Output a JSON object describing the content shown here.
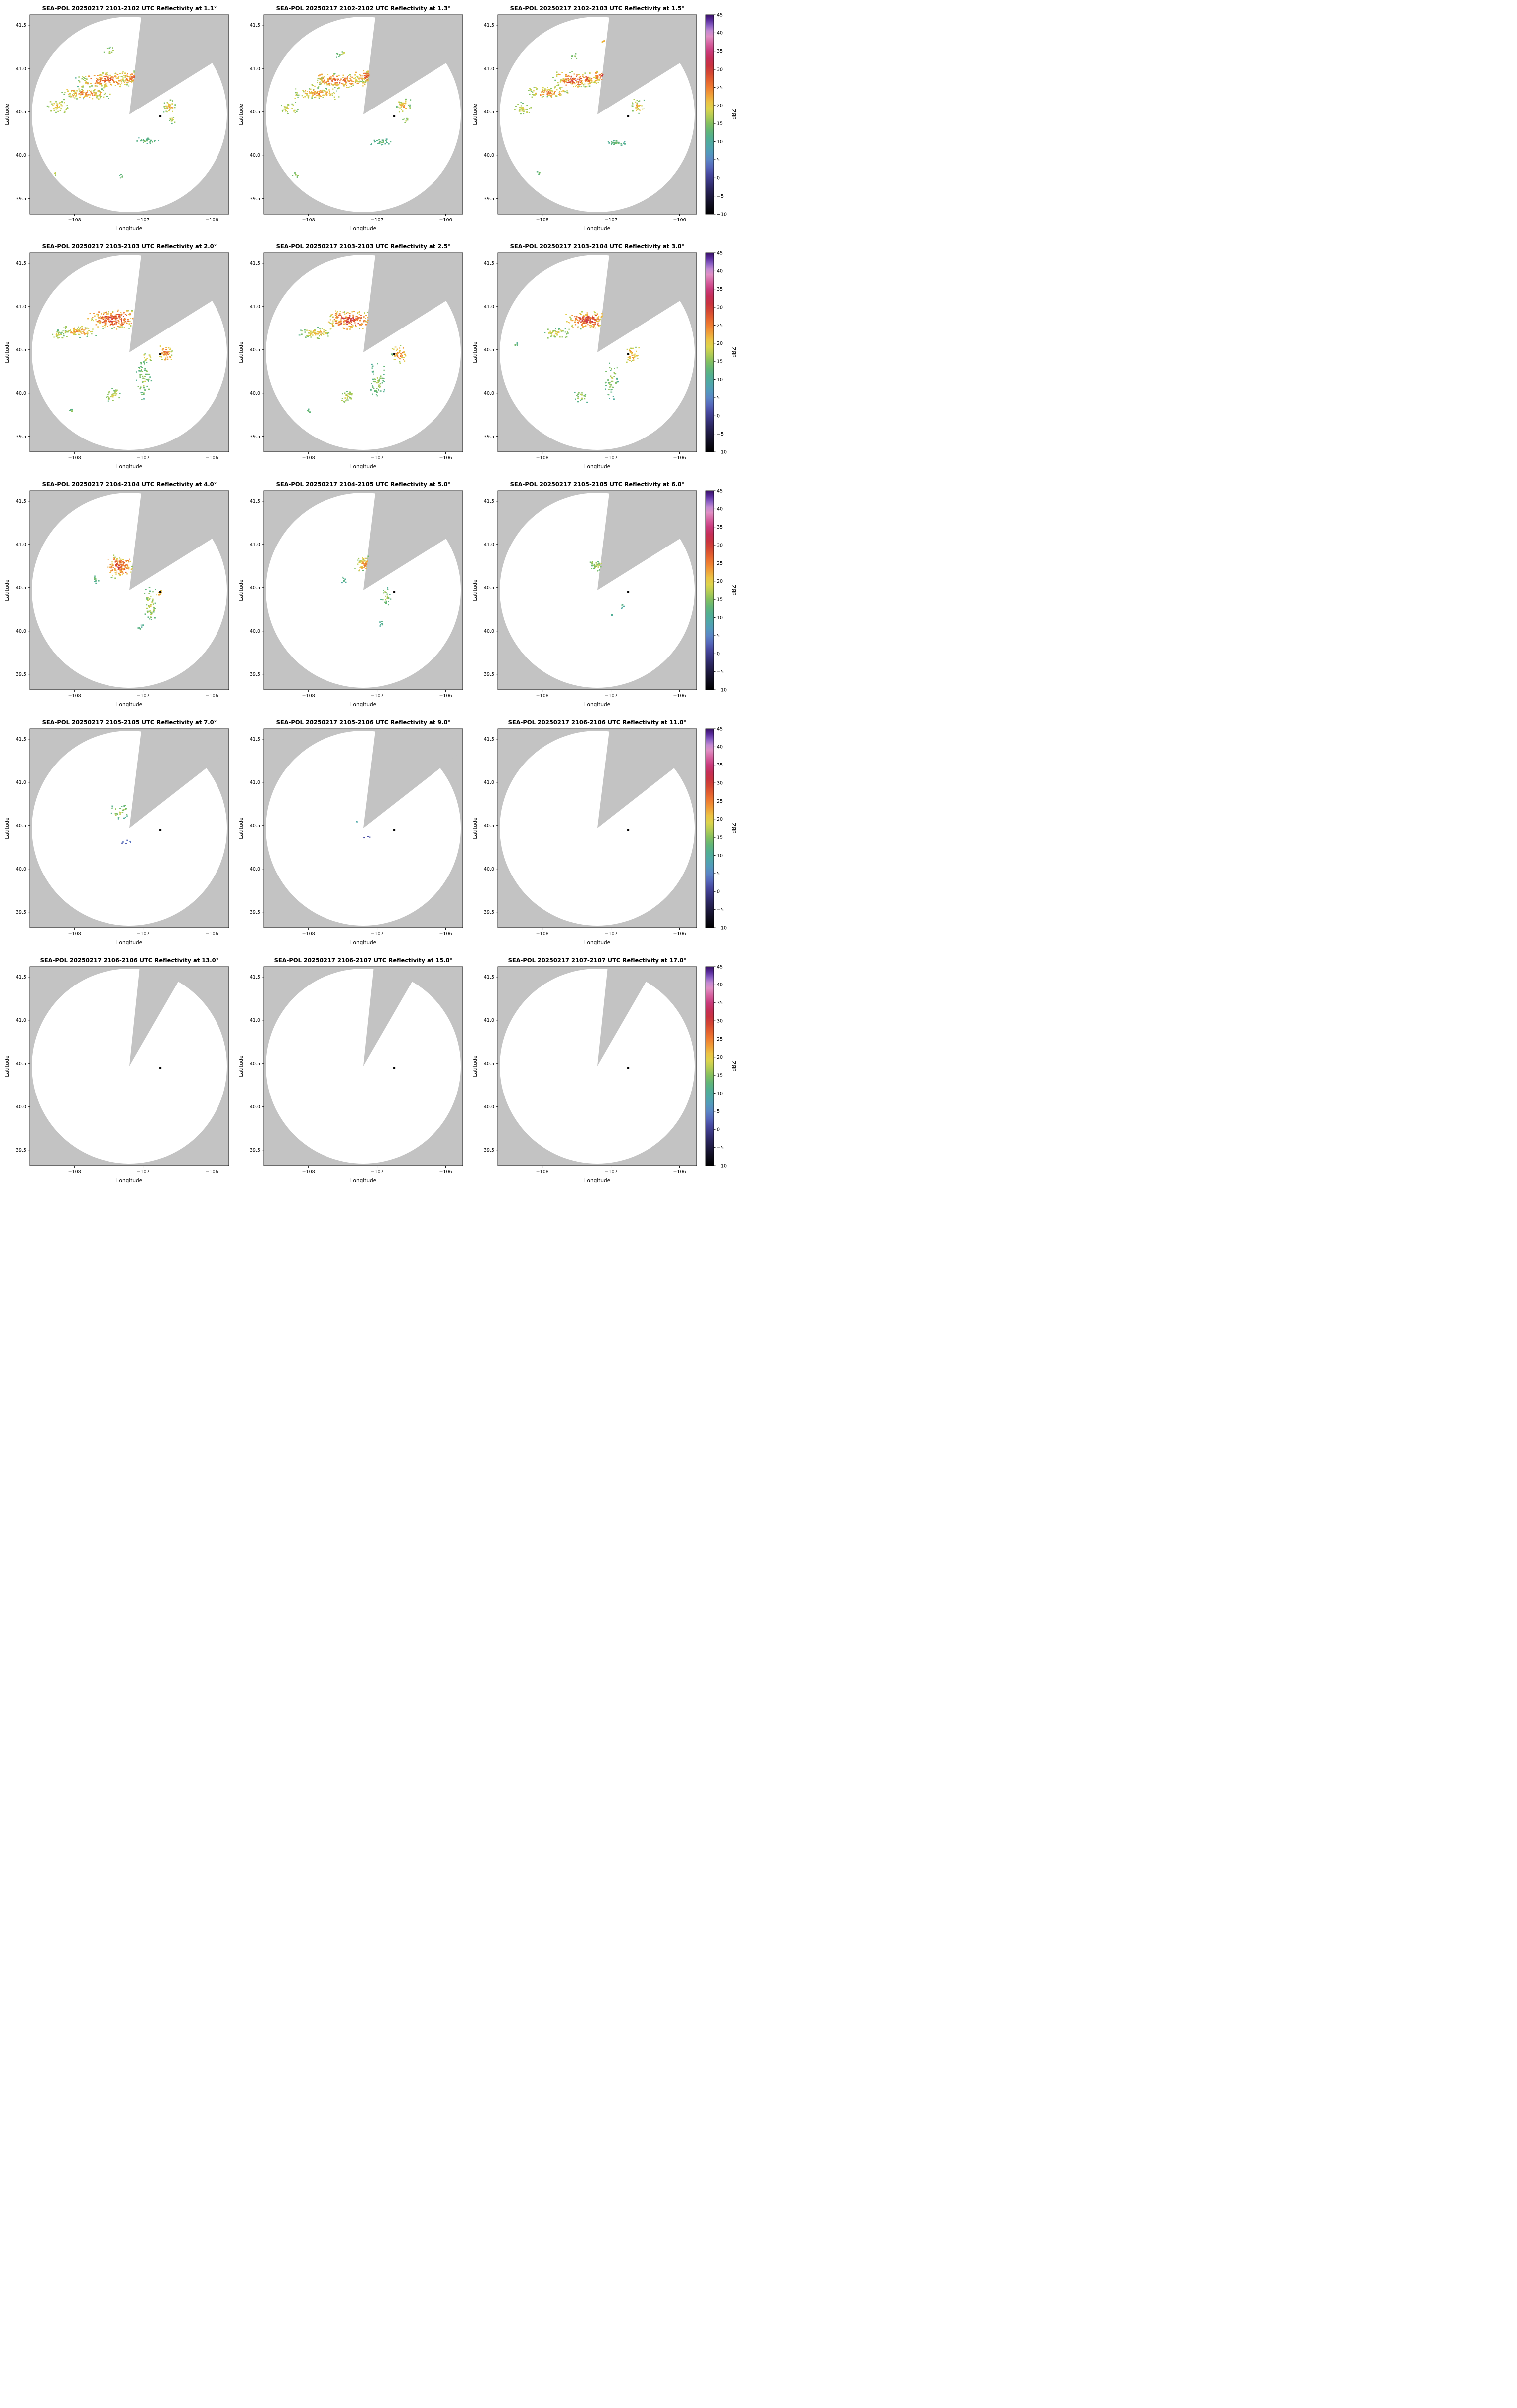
{
  "figure": {
    "rows": 5,
    "cols": 3,
    "axes": {
      "xlabel": "Longitude",
      "ylabel": "Latitude",
      "xlim": [
        -108.65,
        -105.75
      ],
      "ylim": [
        39.32,
        41.62
      ],
      "xticks": [
        -108,
        -107,
        -106
      ],
      "xtick_labels": [
        "−108",
        "−107",
        "−106"
      ],
      "yticks": [
        39.5,
        40.0,
        40.5,
        41.0,
        41.5
      ],
      "ytick_labels": [
        "39.5",
        "40.0",
        "40.5",
        "41.0",
        "41.5"
      ]
    },
    "radar": {
      "center_lon": -107.2,
      "center_lat": 40.47,
      "radius_lat_deg": 1.127,
      "marker_lon": -106.75,
      "marker_lat": 40.45
    },
    "colorbar": {
      "label": "dBZ",
      "min": -10,
      "max": 45,
      "tick_values": [
        45,
        40,
        35,
        30,
        25,
        20,
        15,
        10,
        5,
        0,
        -5,
        -10
      ],
      "tick_labels": [
        "45",
        "40",
        "35",
        "30",
        "25",
        "20",
        "15",
        "10",
        "5",
        "0",
        "−5",
        "−10"
      ],
      "stops": [
        [
          45,
          "#3a1266"
        ],
        [
          43.5,
          "#5b2d9e"
        ],
        [
          42,
          "#8a5fc4"
        ],
        [
          40.5,
          "#c38ad2"
        ],
        [
          39,
          "#e08fc4"
        ],
        [
          37,
          "#d6619f"
        ],
        [
          35,
          "#c93b7c"
        ],
        [
          33,
          "#c52f58"
        ],
        [
          31,
          "#c93340"
        ],
        [
          29,
          "#d44733"
        ],
        [
          27,
          "#e4612f"
        ],
        [
          25,
          "#ef7d31"
        ],
        [
          23,
          "#f09e38"
        ],
        [
          21,
          "#ecc244"
        ],
        [
          19,
          "#dcd44c"
        ],
        [
          17,
          "#b3cc55"
        ],
        [
          15,
          "#84c05f"
        ],
        [
          13,
          "#63b677"
        ],
        [
          11,
          "#52af92"
        ],
        [
          9,
          "#4fa8a8"
        ],
        [
          7,
          "#539bbc"
        ],
        [
          5,
          "#5b86c6"
        ],
        [
          3,
          "#5668bc"
        ],
        [
          1,
          "#48499f"
        ],
        [
          -1,
          "#393680"
        ],
        [
          -3,
          "#2b265e"
        ],
        [
          -5,
          "#1e1a40"
        ],
        [
          -7,
          "#121024"
        ],
        [
          -10,
          "#000000"
        ]
      ]
    },
    "colors": {
      "outside_gray": "#c3c3c3",
      "scan_white": "#ffffff",
      "marker_black": "#000000"
    }
  },
  "chart_data": {
    "type": "heatmap",
    "description": "SEA-POL radar PPI reflectivity sweeps, 5x3 grid of elevation angles, shared dBZ colorbar per row",
    "cluster_fields": [
      "lon",
      "lat",
      "dlon_halfwidth",
      "dlat_halfwidth",
      "n_points",
      "dbz_min",
      "dbz_max",
      "seed"
    ],
    "panels": [
      {
        "title": "SEA-POL 20250217 2101-2102 UTC Reflectivity at 1.1°",
        "elevation": 1.1,
        "wedge": [
          7,
          58
        ],
        "clusters": [
          [
            -107.55,
            40.88,
            0.45,
            0.1,
            170,
            10,
            33,
            11
          ],
          [
            -107.15,
            40.91,
            0.2,
            0.08,
            90,
            12,
            33,
            12
          ],
          [
            -107.85,
            40.72,
            0.38,
            0.07,
            115,
            10,
            30,
            13
          ],
          [
            -108.25,
            40.57,
            0.18,
            0.08,
            40,
            12,
            24,
            14
          ],
          [
            -106.62,
            40.57,
            0.12,
            0.1,
            36,
            10,
            26,
            15
          ],
          [
            -106.95,
            40.17,
            0.18,
            0.04,
            30,
            8,
            16,
            16
          ],
          [
            -108.3,
            39.8,
            0.06,
            0.03,
            6,
            12,
            20,
            17
          ],
          [
            -107.5,
            41.2,
            0.12,
            0.06,
            12,
            10,
            20,
            18
          ],
          [
            -106.58,
            40.42,
            0.06,
            0.05,
            10,
            10,
            22,
            19
          ],
          [
            -107.32,
            39.76,
            0.05,
            0.03,
            5,
            10,
            16,
            20
          ]
        ]
      },
      {
        "title": "SEA-POL 20250217 2102-2102 UTC Reflectivity at 1.3°",
        "elevation": 1.3,
        "wedge": [
          7,
          58
        ],
        "clusters": [
          [
            -107.55,
            40.87,
            0.45,
            0.1,
            165,
            10,
            33,
            111
          ],
          [
            -107.15,
            40.92,
            0.2,
            0.08,
            85,
            12,
            33,
            112
          ],
          [
            -107.9,
            40.72,
            0.35,
            0.07,
            105,
            10,
            30,
            113
          ],
          [
            -108.3,
            40.55,
            0.15,
            0.07,
            32,
            12,
            22,
            114
          ],
          [
            -106.63,
            40.58,
            0.12,
            0.1,
            35,
            10,
            26,
            115
          ],
          [
            -106.95,
            40.16,
            0.17,
            0.04,
            28,
            8,
            16,
            116
          ],
          [
            -108.2,
            39.78,
            0.06,
            0.03,
            6,
            12,
            18,
            117
          ],
          [
            -107.52,
            41.18,
            0.1,
            0.05,
            10,
            10,
            20,
            118
          ],
          [
            -106.6,
            40.4,
            0.05,
            0.05,
            8,
            10,
            20,
            119
          ]
        ]
      },
      {
        "title": "SEA-POL 20250217 2102-2103 UTC Reflectivity at 1.5°",
        "elevation": 1.5,
        "wedge": [
          7,
          58
        ],
        "clusters": [
          [
            -107.5,
            40.88,
            0.42,
            0.1,
            155,
            10,
            34,
            211
          ],
          [
            -107.12,
            40.92,
            0.18,
            0.08,
            80,
            12,
            33,
            212
          ],
          [
            -107.9,
            40.73,
            0.33,
            0.07,
            95,
            10,
            30,
            213
          ],
          [
            -108.3,
            40.55,
            0.14,
            0.07,
            28,
            12,
            22,
            214
          ],
          [
            -106.62,
            40.57,
            0.12,
            0.1,
            35,
            10,
            26,
            215
          ],
          [
            -106.93,
            40.15,
            0.16,
            0.04,
            26,
            8,
            16,
            216
          ],
          [
            -107.12,
            41.32,
            0.03,
            0.02,
            4,
            16,
            26,
            217
          ],
          [
            -107.55,
            41.15,
            0.08,
            0.04,
            8,
            10,
            18,
            218
          ],
          [
            -108.05,
            39.8,
            0.05,
            0.03,
            5,
            10,
            16,
            219
          ]
        ]
      },
      {
        "title": "SEA-POL 20250217 2103-2103 UTC Reflectivity at 2.0°",
        "elevation": 2.0,
        "wedge": [
          7,
          58
        ],
        "clusters": [
          [
            -107.45,
            40.86,
            0.38,
            0.12,
            210,
            12,
            36,
            311
          ],
          [
            -107.95,
            40.72,
            0.3,
            0.08,
            90,
            10,
            28,
            312
          ],
          [
            -108.25,
            40.68,
            0.12,
            0.06,
            25,
            10,
            22,
            313
          ],
          [
            -106.68,
            40.47,
            0.12,
            0.12,
            45,
            12,
            30,
            314
          ],
          [
            -107.0,
            40.15,
            0.12,
            0.25,
            60,
            8,
            20,
            315
          ],
          [
            -107.45,
            39.98,
            0.13,
            0.09,
            35,
            10,
            22,
            316
          ],
          [
            -108.05,
            39.8,
            0.04,
            0.03,
            5,
            10,
            16,
            317
          ],
          [
            -106.95,
            40.42,
            0.06,
            0.05,
            12,
            12,
            26,
            318
          ]
        ]
      },
      {
        "title": "SEA-POL 20250217 2103-2103 UTC Reflectivity at 2.5°",
        "elevation": 2.5,
        "wedge": [
          7,
          58
        ],
        "clusters": [
          [
            -107.4,
            40.85,
            0.35,
            0.12,
            195,
            12,
            36,
            411
          ],
          [
            -107.9,
            40.7,
            0.25,
            0.07,
            70,
            10,
            26,
            412
          ],
          [
            -106.68,
            40.45,
            0.12,
            0.12,
            45,
            12,
            30,
            413
          ],
          [
            -107.0,
            40.15,
            0.12,
            0.25,
            60,
            8,
            20,
            414
          ],
          [
            -107.45,
            39.97,
            0.12,
            0.08,
            30,
            10,
            22,
            415
          ],
          [
            -108.0,
            39.8,
            0.04,
            0.03,
            4,
            10,
            16,
            416
          ]
        ]
      },
      {
        "title": "SEA-POL 20250217 2103-2104 UTC Reflectivity at 3.0°",
        "elevation": 3.0,
        "wedge": [
          7,
          58
        ],
        "clusters": [
          [
            -107.35,
            40.85,
            0.32,
            0.11,
            175,
            12,
            36,
            511
          ],
          [
            -107.8,
            40.7,
            0.2,
            0.06,
            50,
            10,
            24,
            512
          ],
          [
            -106.7,
            40.45,
            0.11,
            0.11,
            40,
            12,
            28,
            513
          ],
          [
            -107.0,
            40.15,
            0.11,
            0.22,
            50,
            8,
            20,
            514
          ],
          [
            -107.45,
            39.97,
            0.1,
            0.07,
            22,
            10,
            20,
            515
          ],
          [
            -108.4,
            40.55,
            0.05,
            0.04,
            6,
            10,
            16,
            516
          ]
        ]
      },
      {
        "title": "SEA-POL 20250217 2104-2104 UTC Reflectivity at 4.0°",
        "elevation": 4.0,
        "wedge": [
          7,
          58
        ],
        "clusters": [
          [
            -107.35,
            40.75,
            0.22,
            0.14,
            135,
            12,
            34,
            611
          ],
          [
            -107.7,
            40.6,
            0.08,
            0.05,
            12,
            8,
            16,
            612
          ],
          [
            -106.9,
            40.3,
            0.1,
            0.22,
            55,
            8,
            22,
            613
          ],
          [
            -106.78,
            40.44,
            0.05,
            0.04,
            10,
            15,
            28,
            614
          ],
          [
            -107.05,
            40.05,
            0.05,
            0.05,
            8,
            8,
            14,
            615
          ]
        ]
      },
      {
        "title": "SEA-POL 20250217 2104-2105 UTC Reflectivity at 5.0°",
        "elevation": 5.0,
        "wedge": [
          7,
          58
        ],
        "clusters": [
          [
            -107.15,
            40.78,
            0.2,
            0.1,
            95,
            10,
            30,
            711
          ],
          [
            -107.5,
            40.6,
            0.06,
            0.04,
            8,
            8,
            14,
            712
          ],
          [
            -106.88,
            40.4,
            0.08,
            0.12,
            25,
            8,
            20,
            713
          ],
          [
            -106.95,
            40.1,
            0.05,
            0.04,
            6,
            8,
            14,
            714
          ]
        ]
      },
      {
        "title": "SEA-POL 20250217 2105-2105 UTC Reflectivity at 6.0°",
        "elevation": 6.0,
        "wedge": [
          7,
          58
        ],
        "clusters": [
          [
            -107.2,
            40.75,
            0.14,
            0.08,
            42,
            8,
            22,
            811
          ],
          [
            -106.85,
            40.3,
            0.04,
            0.04,
            5,
            8,
            14,
            812
          ],
          [
            -107.0,
            40.2,
            0.03,
            0.03,
            3,
            8,
            12,
            813
          ]
        ]
      },
      {
        "title": "SEA-POL 20250217 2105-2105 UTC Reflectivity at 7.0°",
        "elevation": 7.0,
        "wedge": [
          7,
          52
        ],
        "clusters": [
          [
            -107.35,
            40.67,
            0.15,
            0.1,
            28,
            8,
            20,
            911
          ],
          [
            -107.25,
            40.32,
            0.08,
            0.03,
            6,
            0,
            8,
            912
          ]
        ]
      },
      {
        "title": "SEA-POL 20250217 2105-2106 UTC Reflectivity at 9.0°",
        "elevation": 9.0,
        "wedge": [
          7,
          52
        ],
        "clusters": [
          [
            -107.15,
            40.36,
            0.05,
            0.02,
            3,
            0,
            6,
            1011
          ],
          [
            -107.3,
            40.55,
            0.02,
            0.02,
            2,
            5,
            10,
            1012
          ]
        ]
      },
      {
        "title": "SEA-POL 20250217 2106-2106 UTC Reflectivity at 11.0°",
        "elevation": 11.0,
        "wedge": [
          7,
          52
        ],
        "clusters": []
      },
      {
        "title": "SEA-POL 20250217 2106-2106 UTC Reflectivity at 13.0°",
        "elevation": 13.0,
        "wedge": [
          6,
          30
        ],
        "clusters": []
      },
      {
        "title": "SEA-POL 20250217 2106-2107 UTC Reflectivity at 15.0°",
        "elevation": 15.0,
        "wedge": [
          6,
          30
        ],
        "clusters": []
      },
      {
        "title": "SEA-POL 20250217 2107-2107 UTC Reflectivity at 17.0°",
        "elevation": 17.0,
        "wedge": [
          6,
          30
        ],
        "clusters": []
      }
    ]
  }
}
